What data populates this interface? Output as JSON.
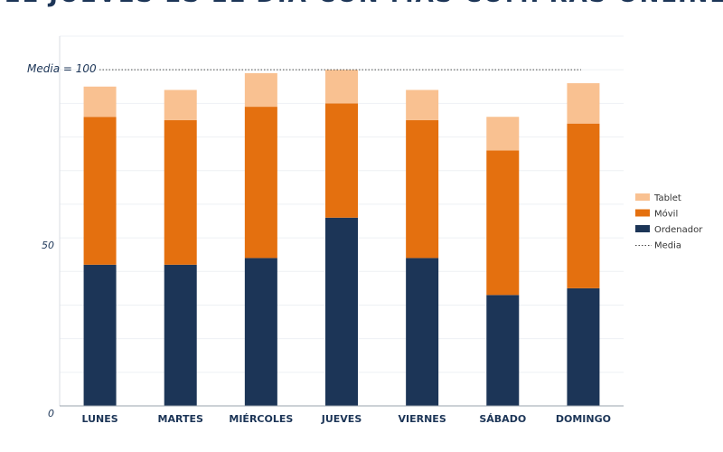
{
  "chart_data": {
    "type": "bar",
    "stacked": true,
    "title": "EL JUEVES ES EL DÍA CON MÁS COMPRAS ONLINE",
    "categories": [
      "LUNES",
      "MARTES",
      "MIÉRCOLES",
      "JUEVES",
      "VIERNES",
      "SÁBADO",
      "DOMINGO"
    ],
    "series": [
      {
        "name": "Ordenador",
        "color": "#1c3557",
        "values": [
          42,
          42,
          44,
          56,
          44,
          33,
          35
        ]
      },
      {
        "name": "Móvil",
        "color": "#e4700f",
        "values": [
          44,
          43,
          45,
          34,
          41,
          43,
          49
        ]
      },
      {
        "name": "Tablet",
        "color": "#f9c191",
        "values": [
          9,
          9,
          10,
          10,
          9,
          10,
          12
        ]
      }
    ],
    "average": {
      "name": "Media",
      "value": 100,
      "label": "Media = 100"
    },
    "yticks": [
      0,
      50
    ],
    "ylim": [
      0,
      110
    ],
    "grid": true,
    "legend_position": "right",
    "legend_order": [
      "Tablet",
      "Móvil",
      "Ordenador",
      "Media"
    ]
  }
}
